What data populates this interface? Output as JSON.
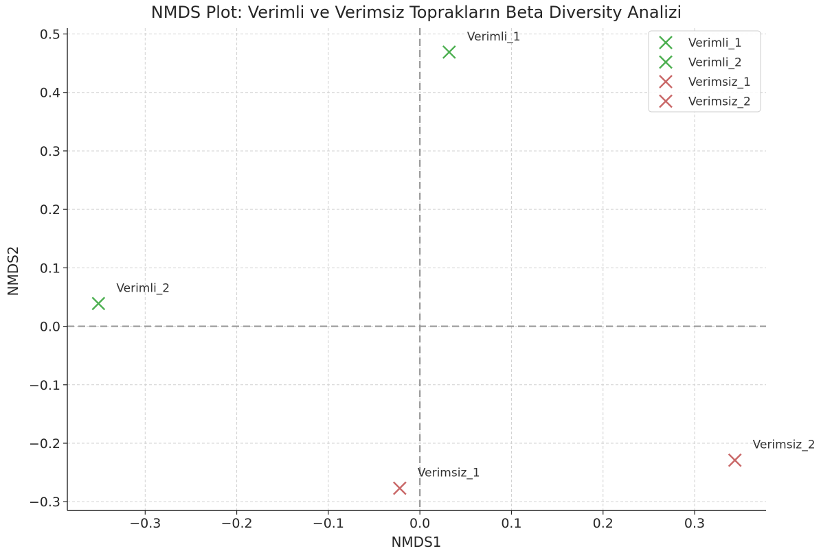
{
  "chart_data": {
    "type": "scatter",
    "title": "NMDS Plot: Verimli ve Verimsiz Toprakların Beta Diversity Analizi",
    "xlabel": "NMDS1",
    "ylabel": "NMDS2",
    "xlim": [
      -0.385,
      0.378
    ],
    "ylim": [
      -0.315,
      0.51
    ],
    "xticks": [
      -0.3,
      -0.2,
      -0.1,
      0.0,
      0.1,
      0.2,
      0.3
    ],
    "yticks": [
      -0.3,
      -0.2,
      -0.1,
      0.0,
      0.1,
      0.2,
      0.3,
      0.4,
      0.5
    ],
    "xtick_labels": [
      "−0.3",
      "−0.2",
      "−0.1",
      "0.0",
      "0.1",
      "0.2",
      "0.3"
    ],
    "ytick_labels": [
      "−0.3",
      "−0.2",
      "−0.1",
      "0.0",
      "0.1",
      "0.2",
      "0.3",
      "0.4",
      "0.5"
    ],
    "grid": true,
    "reference_lines": {
      "x": 0,
      "y": 0
    },
    "marker": "x",
    "legend_position": "top-right",
    "colors": {
      "verimli": "#4caf50",
      "verimsiz": "#c96767",
      "reference": "#999999",
      "grid": "#d0d0d0"
    },
    "series": [
      {
        "name": "Verimli_1",
        "label": "Verimli_1",
        "x": 0.032,
        "y": 0.469,
        "color": "#4caf50"
      },
      {
        "name": "Verimli_2",
        "label": "Verimli_2",
        "x": -0.351,
        "y": 0.039,
        "color": "#4caf50"
      },
      {
        "name": "Verimsiz_1",
        "label": "Verimsiz_1",
        "x": -0.022,
        "y": -0.277,
        "color": "#c96767"
      },
      {
        "name": "Verimsiz_2",
        "label": "Verimsiz_2",
        "x": 0.344,
        "y": -0.229,
        "color": "#c96767"
      }
    ]
  }
}
